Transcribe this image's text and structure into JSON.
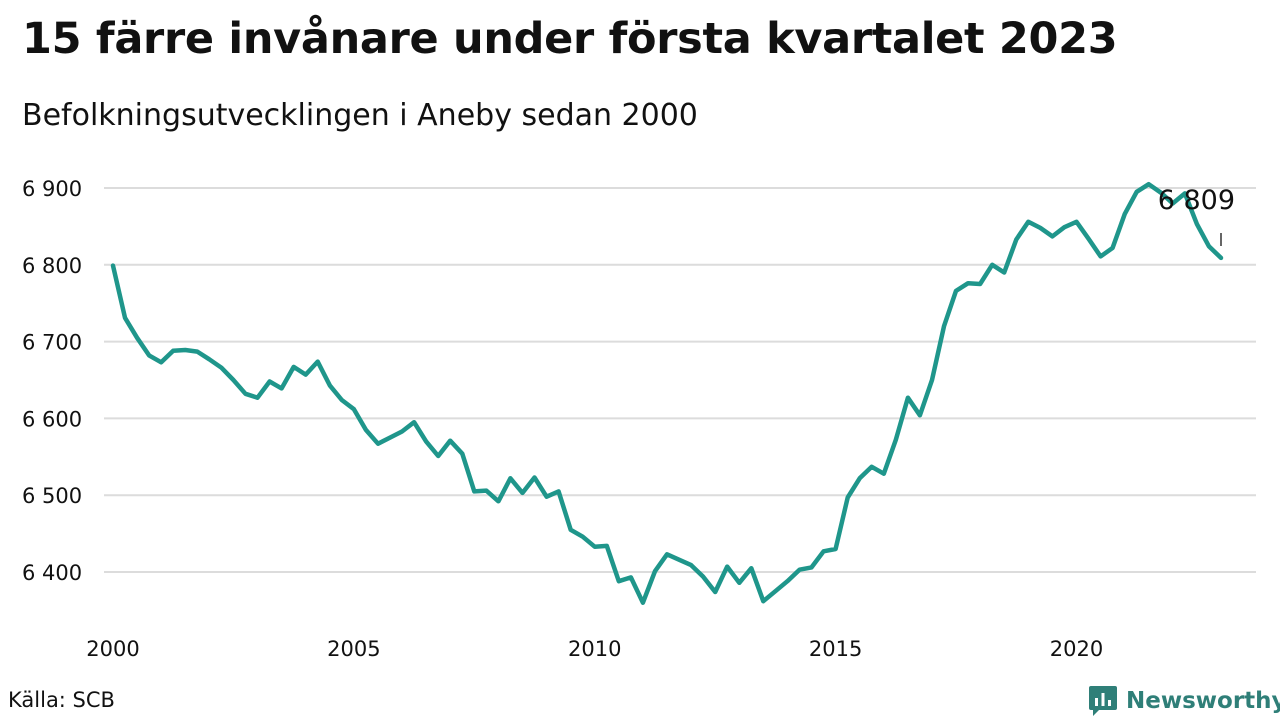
{
  "title": "15 färre invånare under första kvartalet 2023",
  "subtitle": "Befolkningsutvecklingen i Aneby sedan 2000",
  "source": "Källa: SCB",
  "brand": {
    "name": "Newsworthy",
    "icon": "newsworthy-logo-icon",
    "color": "#2f7f78"
  },
  "chart_data": {
    "type": "line",
    "title": "15 färre invånare under första kvartalet 2023",
    "subtitle": "Befolkningsutvecklingen i Aneby sedan 2000",
    "xlabel": "",
    "ylabel": "",
    "xlim": [
      2000,
      2023.1
    ],
    "ylim": [
      6340,
      6920
    ],
    "grid": true,
    "line_color": "#1f968b",
    "y_ticks": [
      6400,
      6500,
      6600,
      6700,
      6800,
      6900
    ],
    "y_tick_labels": [
      "6 400",
      "6 500",
      "6 600",
      "6 700",
      "6 800",
      "6 900"
    ],
    "x_ticks": [
      2000,
      2005,
      2010,
      2015,
      2020
    ],
    "x_tick_labels": [
      "2000",
      "2005",
      "2010",
      "2015",
      "2020"
    ],
    "end_label": "6 809",
    "series": [
      {
        "x": [
          2000.0,
          2000.25,
          2000.5,
          2000.75,
          2001.0,
          2001.25,
          2001.5,
          2001.75,
          2002.0,
          2002.25,
          2002.5,
          2002.75,
          2003.0,
          2003.25,
          2003.5,
          2003.75,
          2004.0,
          2004.25,
          2004.5,
          2004.75,
          2005.0,
          2005.25,
          2005.5,
          2005.75,
          2006.0,
          2006.25,
          2006.5,
          2006.75,
          2007.0,
          2007.25,
          2007.5,
          2007.75,
          2008.0,
          2008.25,
          2008.5,
          2008.75,
          2009.0,
          2009.25,
          2009.5,
          2009.75,
          2010.0,
          2010.25,
          2010.5,
          2010.75,
          2011.0,
          2011.25,
          2011.5,
          2011.75,
          2012.0,
          2012.25,
          2012.5,
          2012.75,
          2013.0,
          2013.25,
          2013.5,
          2013.75,
          2014.0,
          2014.25,
          2014.5,
          2014.75,
          2015.0,
          2015.25,
          2015.5,
          2015.75,
          2016.0,
          2016.25,
          2016.5,
          2016.75,
          2017.0,
          2017.25,
          2017.5,
          2017.75,
          2018.0,
          2018.25,
          2018.5,
          2018.75,
          2019.0,
          2019.25,
          2019.5,
          2019.75,
          2020.0,
          2020.25,
          2020.5,
          2020.75,
          2021.0,
          2021.25,
          2021.5,
          2021.75,
          2022.0,
          2022.25,
          2022.5,
          2022.75,
          2023.0
        ],
        "y": [
          6799,
          6731,
          6705,
          6682,
          6673,
          6688,
          6689,
          6687,
          6677,
          6666,
          6650,
          6632,
          6627,
          6648,
          6639,
          6667,
          6657,
          6674,
          6643,
          6624,
          6612,
          6585,
          6567,
          6575,
          6583,
          6595,
          6570,
          6551,
          6571,
          6554,
          6505,
          6506,
          6492,
          6522,
          6503,
          6523,
          6498,
          6505,
          6455,
          6446,
          6433,
          6434,
          6388,
          6393,
          6360,
          6401,
          6423,
          6416,
          6409,
          6394,
          6374,
          6407,
          6386,
          6405,
          6362,
          6375,
          6388,
          6403,
          6406,
          6427,
          6430,
          6497,
          6522,
          6537,
          6528,
          6572,
          6627,
          6604,
          6650,
          6720,
          6766,
          6776,
          6775,
          6800,
          6790,
          6833,
          6856,
          6848,
          6837,
          6849,
          6856,
          6834,
          6811,
          6822,
          6866,
          6895,
          6905,
          6894,
          6880,
          6893,
          6853,
          6824,
          6809
        ]
      }
    ]
  }
}
